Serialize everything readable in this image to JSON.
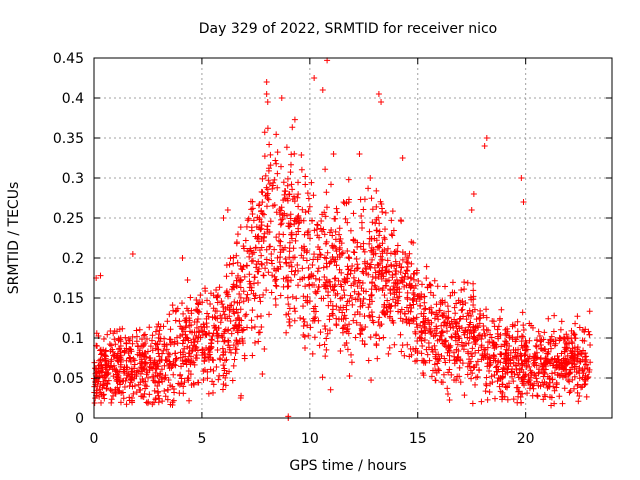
{
  "chart_data": {
    "type": "scatter",
    "title": "Day 329 of 2022, SRMTID for receiver nico",
    "xlabel": "GPS time / hours",
    "ylabel": "SRMTID / TECUs",
    "xlim": [
      0,
      24
    ],
    "ylim": [
      0,
      0.45
    ],
    "xticks": [
      0,
      5,
      10,
      15,
      20
    ],
    "xtick_labels": [
      "0",
      "5",
      "10",
      "15",
      "20"
    ],
    "yticks": [
      0,
      0.05,
      0.1,
      0.15,
      0.2,
      0.25,
      0.3,
      0.35,
      0.4,
      0.45
    ],
    "ytick_labels": [
      "0",
      "0.05",
      "0.1",
      "0.15",
      "0.2",
      "0.25",
      "0.3",
      "0.35",
      "0.4",
      "0.45"
    ],
    "grid": true,
    "marker": "+",
    "color": "#ff0000",
    "series": [
      {
        "name": "SRMTID",
        "x_range": [
          0,
          23
        ],
        "profile_hours": [
          0,
          1,
          2,
          3,
          4,
          5,
          6,
          7,
          8,
          9,
          10,
          11,
          12,
          13,
          14,
          15,
          16,
          17,
          18,
          19,
          20,
          21,
          22,
          23
        ],
        "profile_mean": [
          0.06,
          0.06,
          0.06,
          0.065,
          0.09,
          0.1,
          0.11,
          0.15,
          0.25,
          0.22,
          0.2,
          0.18,
          0.17,
          0.19,
          0.17,
          0.13,
          0.1,
          0.1,
          0.09,
          0.07,
          0.07,
          0.07,
          0.07,
          0.07
        ],
        "profile_spread": [
          0.025,
          0.03,
          0.03,
          0.035,
          0.04,
          0.04,
          0.045,
          0.06,
          0.08,
          0.07,
          0.07,
          0.06,
          0.06,
          0.06,
          0.05,
          0.045,
          0.04,
          0.04,
          0.04,
          0.035,
          0.03,
          0.03,
          0.03,
          0.03
        ],
        "outliers": [
          {
            "x": 8.0,
            "y": 0.42
          },
          {
            "x": 8.0,
            "y": 0.405
          },
          {
            "x": 8.05,
            "y": 0.395
          },
          {
            "x": 8.7,
            "y": 0.4
          },
          {
            "x": 10.2,
            "y": 0.425
          },
          {
            "x": 10.8,
            "y": 0.447
          },
          {
            "x": 10.6,
            "y": 0.41
          },
          {
            "x": 13.2,
            "y": 0.405
          },
          {
            "x": 13.3,
            "y": 0.395
          },
          {
            "x": 18.2,
            "y": 0.35
          },
          {
            "x": 18.1,
            "y": 0.34
          },
          {
            "x": 19.8,
            "y": 0.3
          },
          {
            "x": 19.9,
            "y": 0.27
          },
          {
            "x": 17.6,
            "y": 0.28
          },
          {
            "x": 17.5,
            "y": 0.26
          },
          {
            "x": 6.0,
            "y": 0.25
          },
          {
            "x": 6.2,
            "y": 0.26
          },
          {
            "x": 1.8,
            "y": 0.205
          },
          {
            "x": 0.3,
            "y": 0.178
          },
          {
            "x": 0.1,
            "y": 0.175
          },
          {
            "x": 4.1,
            "y": 0.2
          },
          {
            "x": 14.3,
            "y": 0.325
          },
          {
            "x": 12.8,
            "y": 0.3
          },
          {
            "x": 9.0,
            "y": 0.0
          },
          {
            "x": 9.0,
            "y": 0.002
          },
          {
            "x": 7.8,
            "y": 0.055
          },
          {
            "x": 6.8,
            "y": 0.025
          },
          {
            "x": 11.1,
            "y": 0.33
          },
          {
            "x": 12.3,
            "y": 0.33
          },
          {
            "x": 16.4,
            "y": 0.03
          }
        ]
      }
    ]
  }
}
